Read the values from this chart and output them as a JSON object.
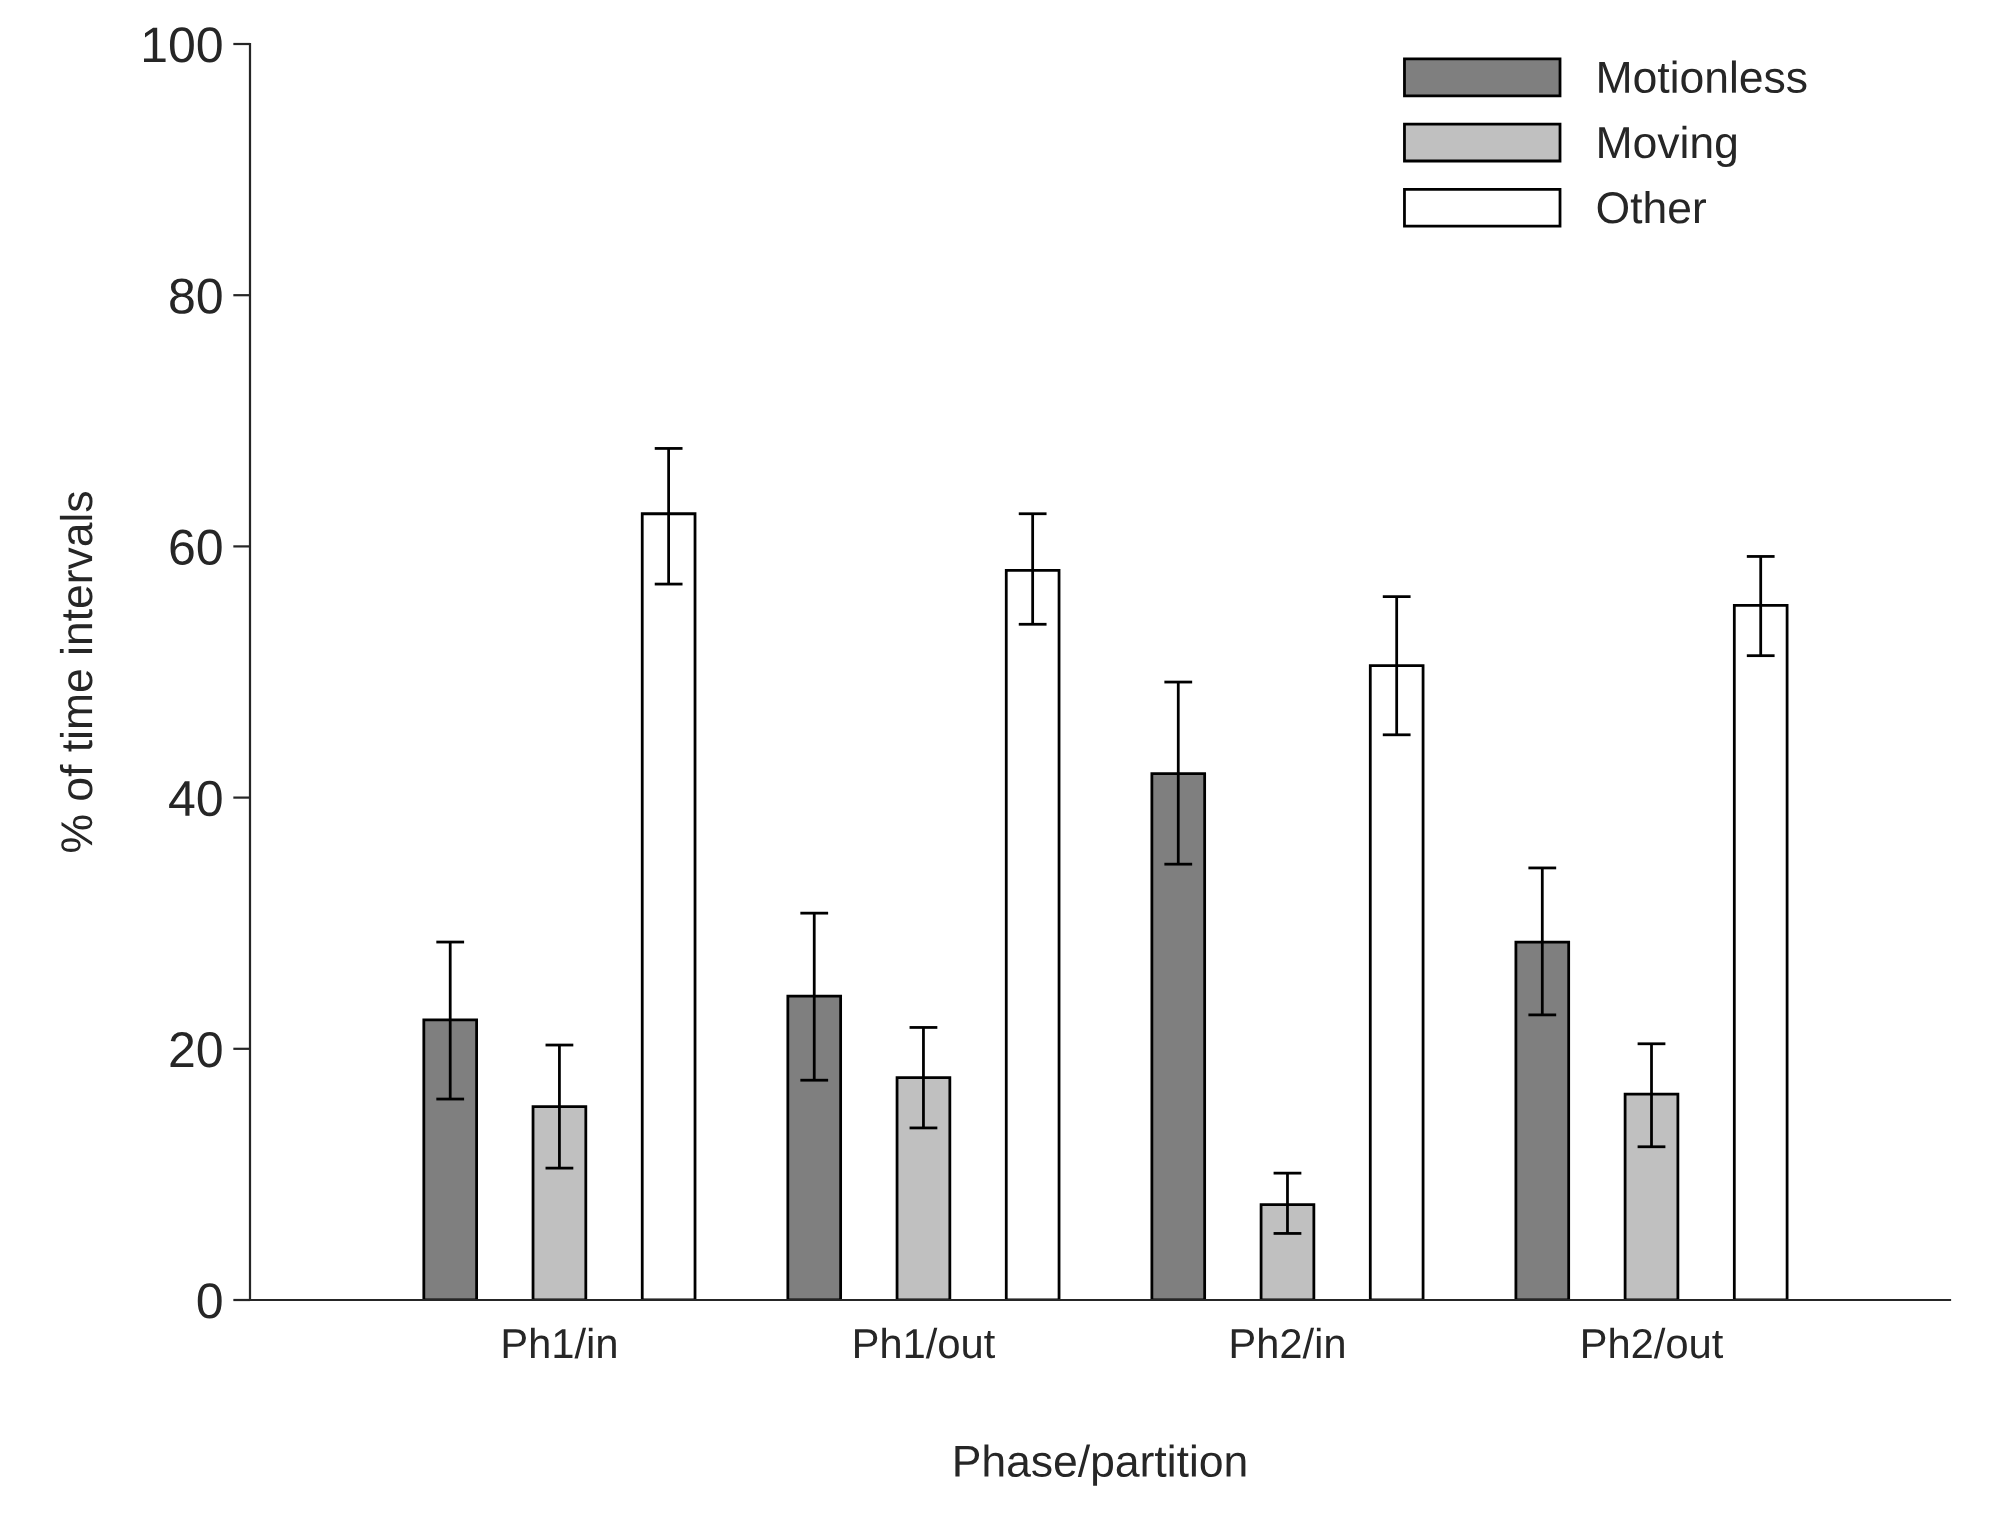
{
  "chart_data": {
    "type": "bar",
    "xlabel": "Phase/partition",
    "ylabel": "% of time intervals",
    "categories": [
      "Ph1/in",
      "Ph1/out",
      "Ph2/in",
      "Ph2/out"
    ],
    "series": [
      {
        "name": "Motionless",
        "color": "#7f7f7f",
        "values": [
          22.3,
          24.2,
          41.9,
          28.5
        ],
        "errors": [
          [
            16,
            28.5
          ],
          [
            17.5,
            30.8
          ],
          [
            34.7,
            49.2
          ],
          [
            22.7,
            34.4
          ]
        ]
      },
      {
        "name": "Moving",
        "color": "#c0c0c0",
        "values": [
          15.4,
          17.7,
          7.6,
          16.4
        ],
        "errors": [
          [
            10.5,
            20.3
          ],
          [
            13.7,
            21.7
          ],
          [
            5.3,
            10.1
          ],
          [
            12.2,
            20.4
          ]
        ]
      },
      {
        "name": "Other",
        "color": "#ffffff",
        "values": [
          62.6,
          58.1,
          50.5,
          55.3
        ],
        "errors": [
          [
            57,
            67.8
          ],
          [
            53.8,
            62.6
          ],
          [
            45,
            56
          ],
          [
            51.3,
            59.2
          ]
        ]
      }
    ],
    "ylim": [
      0,
      100
    ],
    "yticks": [
      0,
      20,
      40,
      60,
      80,
      100
    ],
    "grid": false,
    "legend": "top right"
  }
}
